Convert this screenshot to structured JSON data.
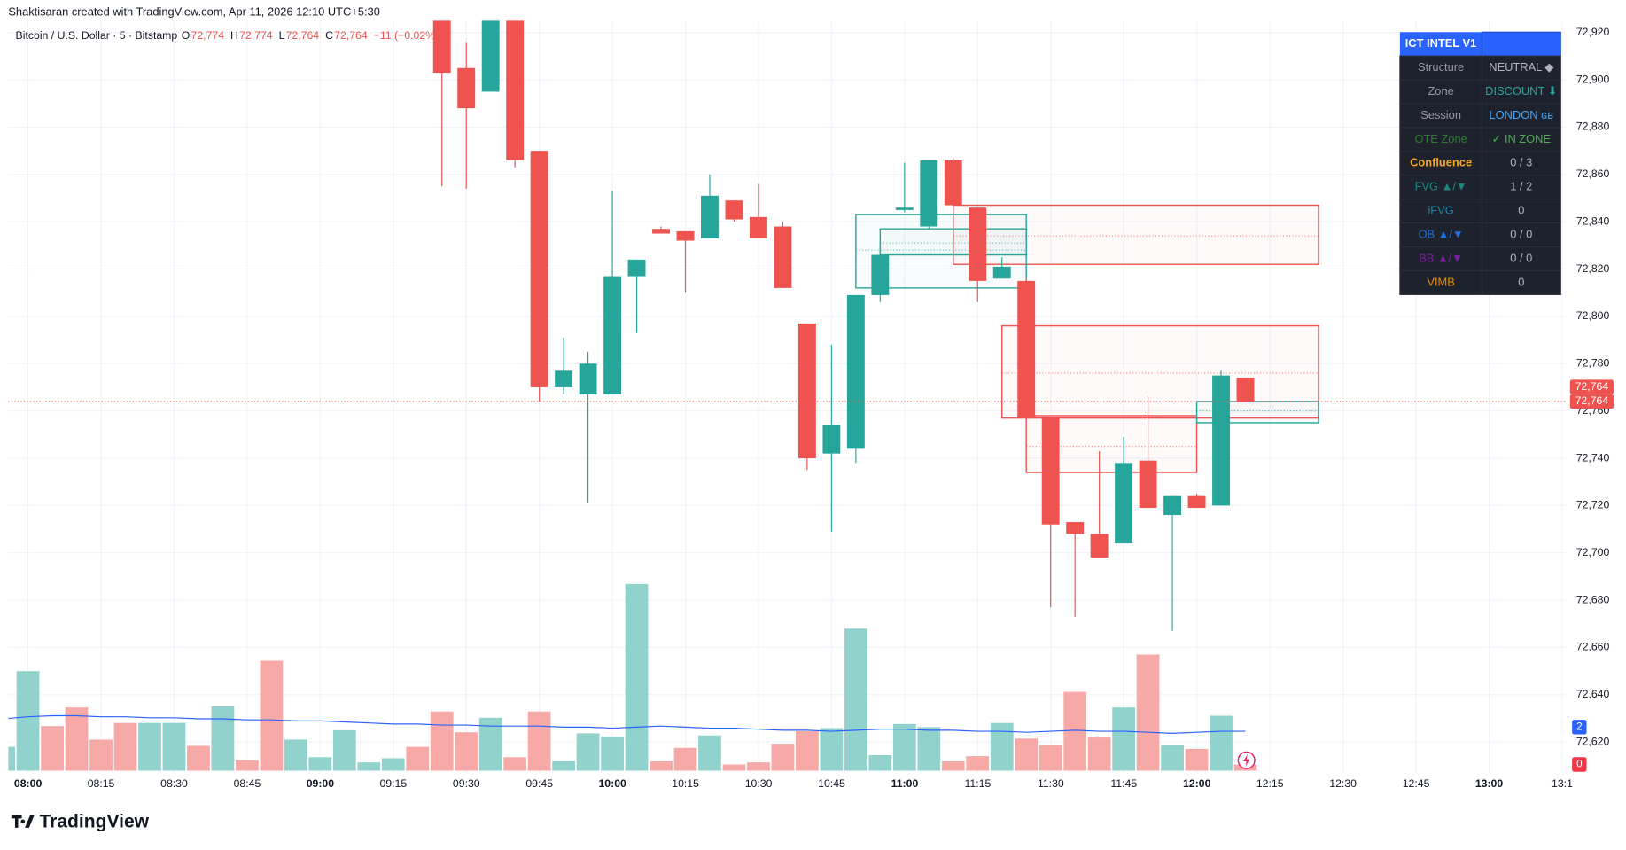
{
  "header": {
    "attribution": "Shaktisaran created with TradingView.com, Apr 11, 2026 12:10 UTC+5:30",
    "logo": "TradingView"
  },
  "chart_data": {
    "type": "candlestick",
    "symbol": "Bitcoin / U.S. Dollar · 5 · Bitstamp",
    "ohlc": [
      {
        "label": "O",
        "value": "72,774"
      },
      {
        "label": "H",
        "value": "72,774"
      },
      {
        "label": "L",
        "value": "72,764"
      },
      {
        "label": "C",
        "value": "72,764"
      }
    ],
    "change": "−11 (−0.02%)",
    "up_color": "#26a69a",
    "down_color": "#ef5350",
    "ylim": [
      72607,
      72925
    ],
    "yticks": [
      {
        "value": 72620,
        "label": "72,620"
      },
      {
        "value": 72640,
        "label": "72,640"
      },
      {
        "value": 72660,
        "label": "72,660"
      },
      {
        "value": 72680,
        "label": "72,680"
      },
      {
        "value": 72700,
        "label": "72,700"
      },
      {
        "value": 72720,
        "label": "72,720"
      },
      {
        "value": 72740,
        "label": "72,740"
      },
      {
        "value": 72760,
        "label": "72,760"
      },
      {
        "value": 72780,
        "label": "72,780"
      },
      {
        "value": 72800,
        "label": "72,800"
      },
      {
        "value": 72820,
        "label": "72,820"
      },
      {
        "value": 72840,
        "label": "72,840"
      },
      {
        "value": 72860,
        "label": "72,860"
      },
      {
        "value": 72880,
        "label": "72,880"
      },
      {
        "value": 72900,
        "label": "72,900"
      },
      {
        "value": 72920,
        "label": "72,920"
      }
    ],
    "xticks": [
      "08:00",
      "08:15",
      "08:30",
      "08:45",
      "09:00",
      "09:15",
      "09:30",
      "09:45",
      "10:00",
      "10:15",
      "10:30",
      "10:45",
      "11:00",
      "11:15",
      "11:30",
      "11:45",
      "12:00",
      "12:15",
      "12:30",
      "12:45",
      "13:00",
      "13:1"
    ],
    "grid": true,
    "candles": {
      "x": [
        "09:25",
        "09:30",
        "09:35",
        "09:40",
        "09:45",
        "09:50",
        "09:55",
        "10:00",
        "10:05",
        "10:10",
        "10:15",
        "10:20",
        "10:25",
        "10:30",
        "10:35",
        "10:40",
        "10:45",
        "10:50",
        "10:55",
        "11:00",
        "11:05",
        "11:10",
        "11:15",
        "11:20",
        "11:25",
        "11:30",
        "11:35",
        "11:40",
        "11:45",
        "11:50",
        "11:55",
        "12:00",
        "12:05",
        "12:10"
      ],
      "open": [
        72930,
        72905,
        72895,
        72930,
        72870,
        72770,
        72767,
        72767,
        72817,
        72837,
        72836,
        72833,
        72849,
        72842,
        72838,
        72797,
        72742,
        72744,
        72809,
        72845,
        72838,
        72866,
        72846,
        72816,
        72815,
        72757,
        72713,
        72708,
        72704,
        72739,
        72716,
        72724,
        72720,
        72774
      ],
      "high": [
        72935,
        72916,
        72935,
        72935,
        72870,
        72791,
        72785,
        72853,
        72824,
        72838,
        72836,
        72860,
        72849,
        72856,
        72840,
        72797,
        72788,
        72809,
        72832,
        72865,
        72866,
        72867,
        72846,
        72825,
        72816,
        72757,
        72713,
        72743,
        72749,
        72766,
        72724,
        72725,
        72777,
        72774
      ],
      "low": [
        72855,
        72854,
        72895,
        72863,
        72764,
        72767,
        72721,
        72767,
        72793,
        72835,
        72810,
        72833,
        72840,
        72833,
        72812,
        72735,
        72709,
        72738,
        72806,
        72844,
        72837,
        72847,
        72806,
        72816,
        72757,
        72677,
        72673,
        72698,
        72704,
        72719,
        72667,
        72719,
        72720,
        72764
      ],
      "close": [
        72903,
        72888,
        72930,
        72866,
        72770,
        72777,
        72780,
        72817,
        72824,
        72835,
        72832,
        72851,
        72841,
        72833,
        72812,
        72740,
        72754,
        72809,
        72826,
        72846,
        72866,
        72847,
        72815,
        72821,
        72757,
        72712,
        72708,
        72698,
        72738,
        72719,
        72724,
        72719,
        72775,
        72764
      ]
    },
    "volume": {
      "x": [
        "07:55",
        "08:00",
        "08:05",
        "08:10",
        "08:15",
        "08:20",
        "08:25",
        "08:30",
        "08:35",
        "08:40",
        "08:45",
        "08:50",
        "08:55",
        "09:00",
        "09:05",
        "09:10",
        "09:15",
        "09:20",
        "09:25",
        "09:30",
        "09:35",
        "09:40",
        "09:45",
        "09:50",
        "09:55",
        "10:00",
        "10:05",
        "10:10",
        "10:15",
        "10:20",
        "10:25",
        "10:30",
        "10:35",
        "10:40",
        "10:45",
        "10:50",
        "10:55",
        "11:00",
        "11:05",
        "11:10",
        "11:15",
        "11:20",
        "11:25",
        "11:30",
        "11:35",
        "11:40",
        "11:45",
        "11:50",
        "11:55",
        "12:00",
        "12:05",
        "12:10"
      ],
      "values": [
        23,
        96,
        43,
        61,
        30,
        46,
        46,
        46,
        24,
        62,
        10,
        106,
        30,
        13,
        39,
        8,
        12,
        23,
        57,
        37,
        51,
        13,
        57,
        9,
        36,
        33,
        180,
        9,
        22,
        34,
        6,
        8,
        26,
        38,
        41,
        137,
        15,
        45,
        42,
        9,
        14,
        46,
        31,
        25,
        76,
        32,
        61,
        112,
        25,
        21,
        53,
        6
      ],
      "directions": [
        "up",
        "up",
        "down",
        "down",
        "down",
        "down",
        "up",
        "up",
        "down",
        "up",
        "down",
        "down",
        "up",
        "up",
        "up",
        "up",
        "up",
        "down",
        "down",
        "down",
        "up",
        "down",
        "down",
        "up",
        "up",
        "up",
        "up",
        "down",
        "down",
        "up",
        "down",
        "down",
        "down",
        "down",
        "up",
        "up",
        "up",
        "up",
        "up",
        "down",
        "down",
        "up",
        "down",
        "down",
        "down",
        "down",
        "up",
        "down",
        "up",
        "down",
        "up",
        "down"
      ],
      "ma": [
        50,
        52,
        53,
        53,
        52,
        52,
        51,
        51,
        50,
        50,
        49,
        49,
        48,
        48,
        47,
        46,
        45,
        45,
        44,
        44,
        43,
        43,
        43,
        42,
        42,
        41,
        42,
        43,
        42,
        41,
        41,
        40,
        39,
        39,
        38,
        39,
        40,
        40,
        39,
        39,
        38,
        38,
        37,
        38,
        39,
        38,
        38,
        37,
        36,
        37,
        38,
        38
      ],
      "up_color": "#92d2cc",
      "down_color": "#f7a9a7",
      "ma_color": "#2962ff"
    },
    "zones": [
      {
        "start": "11:10",
        "end": "12:25",
        "top": 72847,
        "bottom": 72822,
        "mid": 72834,
        "color": "#ef5350"
      },
      {
        "start": "11:20",
        "end": "12:25",
        "top": 72796,
        "bottom": 72757,
        "mid": 72776,
        "color": "#ef5350"
      },
      {
        "start": "11:25",
        "end": "12:00",
        "top": 72758,
        "bottom": 72734,
        "mid": 72745,
        "color": "#ef5350"
      },
      {
        "start": "10:50",
        "end": "11:25",
        "top": 72843,
        "bottom": 72812,
        "mid": 72828,
        "color": "#26a69a"
      },
      {
        "start": "10:55",
        "end": "11:25",
        "top": 72837,
        "bottom": 72826,
        "mid": 72831,
        "color": "#26a69a"
      },
      {
        "start": "12:00",
        "end": "12:25",
        "top": 72764,
        "bottom": 72755,
        "mid": 72760,
        "color": "#26a69a"
      }
    ],
    "last_price_labels": [
      {
        "value": 72764,
        "label": "72,764"
      },
      {
        "value": 72764,
        "label": "72,764"
      }
    ],
    "volume_badges": [
      {
        "text": "2",
        "color": "#2962ff"
      },
      {
        "text": "0",
        "color": "#f23645"
      }
    ]
  },
  "table": {
    "title": "ICT INTEL V1",
    "rows": [
      {
        "label": "Structure",
        "value": "NEUTRAL ◆",
        "label_color": "#9598a1",
        "value_color": "#b2b5be"
      },
      {
        "label": "Zone",
        "value": "DISCOUNT ⬇",
        "label_color": "#9598a1",
        "value_color": "#26a69a"
      },
      {
        "label": "Session",
        "value": "LONDON ɢʙ",
        "label_color": "#9598a1",
        "value_color": "#42a5f5"
      },
      {
        "label": "OTE Zone",
        "value": "✓ IN ZONE",
        "label_color": "#2e7d32",
        "value_color": "#4caf50"
      },
      {
        "label": "Confluence",
        "value": "0 / 3",
        "label_color": "#f5a623",
        "value_color": "#b2b5be"
      },
      {
        "label": "FVG ▲/▼",
        "value": "1 / 2",
        "label_color": "#1b8a80",
        "value_color": "#b2b5be"
      },
      {
        "label": "iFVG",
        "value": "0",
        "label_color": "#1e88a8",
        "value_color": "#b2b5be"
      },
      {
        "label": "OB ▲/▼",
        "value": "0 / 0",
        "label_color": "#1e6fd9",
        "value_color": "#b2b5be"
      },
      {
        "label": "BB ▲/▼",
        "value": "0 / 0",
        "label_color": "#7b1fa2",
        "value_color": "#b2b5be"
      },
      {
        "label": "VIMB",
        "value": "0",
        "label_color": "#e68a00",
        "value_color": "#b2b5be"
      }
    ]
  }
}
